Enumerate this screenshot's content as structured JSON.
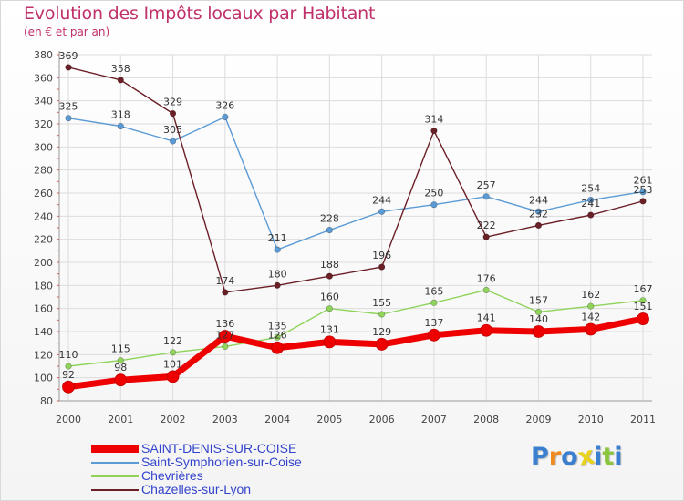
{
  "chart_data": {
    "type": "line",
    "title": "Evolution des Impôts locaux par Habitant",
    "subtitle": "(en € et par an)",
    "x": [
      "2000",
      "2001",
      "2002",
      "2003",
      "2004",
      "2005",
      "2006",
      "2007",
      "2008",
      "2009",
      "2010",
      "2011"
    ],
    "ylim": [
      80,
      380
    ],
    "yticks": [
      80,
      100,
      120,
      140,
      160,
      180,
      200,
      220,
      240,
      260,
      280,
      300,
      320,
      340,
      360,
      380
    ],
    "grid": true,
    "legend_position": "bottom-left",
    "series": [
      {
        "name": "Saint-Symphorien-sur-Coise",
        "color": "#5b9bd5",
        "values": [
          325,
          318,
          305,
          326,
          211,
          228,
          244,
          250,
          257,
          244,
          254,
          261
        ]
      },
      {
        "name": "Chevrières",
        "color": "#8fd35b",
        "values": [
          110,
          115,
          122,
          127,
          135,
          160,
          155,
          165,
          176,
          157,
          162,
          167
        ]
      },
      {
        "name": "Chazelles-sur-Lyon",
        "color": "#6b1f26",
        "values": [
          369,
          358,
          329,
          174,
          180,
          188,
          196,
          314,
          222,
          232,
          241,
          253
        ]
      },
      {
        "name": "SAINT-DENIS-SUR-COISE",
        "color": "#ee0000",
        "values": [
          92,
          98,
          101,
          136,
          126,
          131,
          129,
          137,
          141,
          140,
          142,
          151
        ]
      }
    ],
    "legend": [
      {
        "name": "SAINT-DENIS-SUR-COISE",
        "color": "#ee0000",
        "thick": true
      },
      {
        "name": "Saint-Symphorien-sur-Coise",
        "color": "#5b9bd5",
        "thick": false
      },
      {
        "name": "Chevrières",
        "color": "#8fd35b",
        "thick": false
      },
      {
        "name": "Chazelles-sur-Lyon",
        "color": "#6b1f26",
        "thick": false
      }
    ]
  },
  "logo": {
    "letters": [
      "P",
      "r",
      "o",
      "x",
      "i",
      "t",
      "i"
    ],
    "colors": [
      "#3a7fd0",
      "#f08a1c",
      "#3a7fd0",
      "#e8d21a",
      "#3a7fd0",
      "#8cc63f",
      "#3a7fd0"
    ]
  }
}
